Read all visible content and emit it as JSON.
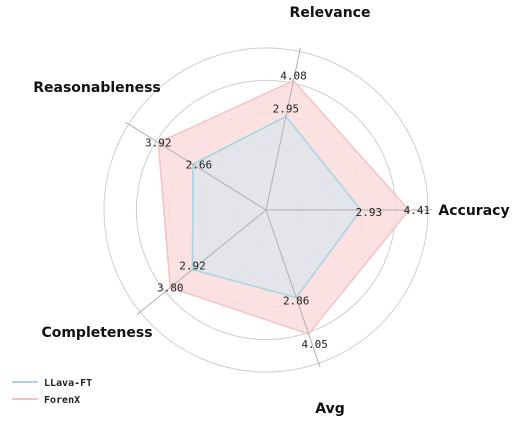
{
  "chart_data": {
    "type": "radar",
    "axes": [
      "Relevance",
      "Reasonableness",
      "Completeness",
      "Avg",
      "Accuracy"
    ],
    "rmax": 5,
    "grid_rings": [
      1,
      2,
      3,
      4,
      5
    ],
    "grid": true,
    "legend_position": "bottom-left",
    "series": [
      {
        "name": "LLava-FT",
        "values": [
          2.95,
          2.66,
          2.92,
          2.86,
          2.93
        ],
        "labels": [
          "2.95",
          "2.66",
          "2.92",
          "2.86",
          "2.93"
        ],
        "line_color": "#a8d4e3",
        "fill_color": "#d3e8ef"
      },
      {
        "name": "ForenX",
        "values": [
          4.08,
          3.92,
          3.8,
          4.05,
          4.41
        ],
        "labels": [
          "4.08",
          "3.92",
          "3.80",
          "4.05",
          "4.41"
        ],
        "line_color": "#f6c4c8",
        "fill_color": "#fcdcde"
      }
    ]
  }
}
